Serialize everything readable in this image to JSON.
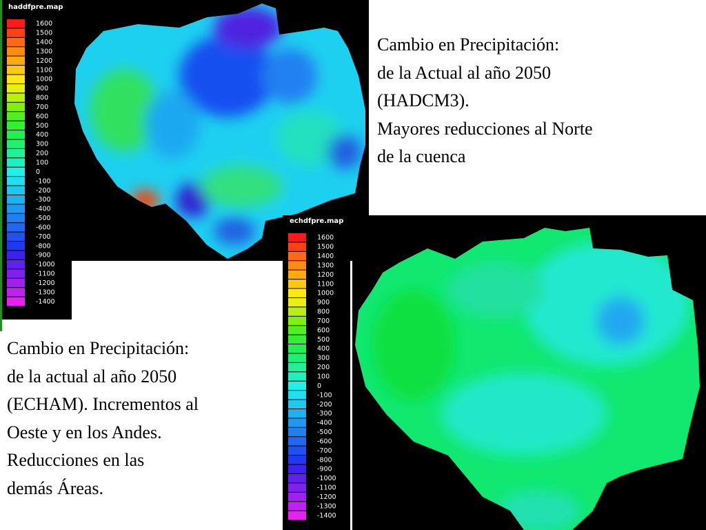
{
  "maps": [
    {
      "title": "haddfpre.map",
      "legend": [
        1600,
        1500,
        1400,
        1300,
        1200,
        1100,
        1000,
        900,
        800,
        700,
        600,
        500,
        400,
        300,
        200,
        100,
        0,
        -100,
        -200,
        -300,
        -400,
        -500,
        -600,
        -700,
        -800,
        -900,
        -1000,
        -1100,
        -1200,
        -1300,
        -1400
      ]
    },
    {
      "title": "echdfpre.map",
      "legend": [
        1600,
        1500,
        1400,
        1300,
        1200,
        1100,
        1000,
        900,
        800,
        700,
        600,
        500,
        400,
        300,
        200,
        100,
        0,
        -100,
        -200,
        -300,
        -400,
        -500,
        -600,
        -700,
        -800,
        -900,
        -1000,
        -1100,
        -1200,
        -1300,
        -1400
      ]
    }
  ],
  "captions": [
    {
      "lines": [
        "Cambio en Precipitación:",
        "de la Actual al año 2050",
        "(HADCM3).",
        "Mayores reducciones al Norte",
        "de la cuenca"
      ]
    },
    {
      "lines": [
        "Cambio en Precipitación:",
        "de la actual al año 2050",
        "(ECHAM). Incrementos al",
        "Oeste y en los Andes.",
        "Reducciones en las",
        "demás Áreas."
      ]
    }
  ]
}
